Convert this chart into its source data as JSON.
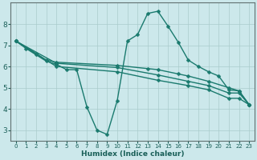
{
  "background_color": "#cce8eb",
  "grid_color": "#aacccc",
  "line_color": "#1a7a6e",
  "marker": "D",
  "markersize": 2.5,
  "linewidth": 1.0,
  "xlabel": "Humidex (Indice chaleur)",
  "xlim": [
    -0.5,
    23.5
  ],
  "ylim": [
    2.5,
    9.0
  ],
  "yticks": [
    3,
    4,
    5,
    6,
    7,
    8
  ],
  "xticks": [
    0,
    1,
    2,
    3,
    4,
    5,
    6,
    7,
    8,
    9,
    10,
    11,
    12,
    13,
    14,
    15,
    16,
    17,
    18,
    19,
    20,
    21,
    22,
    23
  ],
  "lines": [
    {
      "x": [
        0,
        1,
        2,
        3,
        4,
        5,
        6,
        7,
        8,
        9,
        10,
        11,
        12,
        13,
        14,
        15,
        16,
        17,
        18,
        19,
        20,
        21,
        22,
        23
      ],
      "y": [
        7.2,
        6.85,
        6.55,
        6.25,
        6.1,
        5.85,
        5.85,
        4.1,
        3.0,
        2.8,
        4.4,
        7.2,
        7.5,
        8.5,
        8.6,
        7.9,
        7.15,
        6.3,
        6.0,
        5.75,
        5.55,
        4.9,
        4.85,
        4.2
      ]
    },
    {
      "x": [
        0,
        2,
        3,
        4,
        10,
        13,
        14,
        16,
        17,
        19,
        21,
        22,
        23
      ],
      "y": [
        7.2,
        6.6,
        6.3,
        6.2,
        6.05,
        5.9,
        5.85,
        5.65,
        5.55,
        5.3,
        5.0,
        4.85,
        4.2
      ]
    },
    {
      "x": [
        0,
        4,
        10,
        14,
        17,
        19,
        21,
        22,
        23
      ],
      "y": [
        7.2,
        6.15,
        5.95,
        5.6,
        5.3,
        5.1,
        4.75,
        4.75,
        4.2
      ]
    },
    {
      "x": [
        0,
        4,
        10,
        14,
        17,
        19,
        21,
        22,
        23
      ],
      "y": [
        7.2,
        6.0,
        5.75,
        5.35,
        5.1,
        4.9,
        4.5,
        4.5,
        4.2
      ]
    }
  ]
}
